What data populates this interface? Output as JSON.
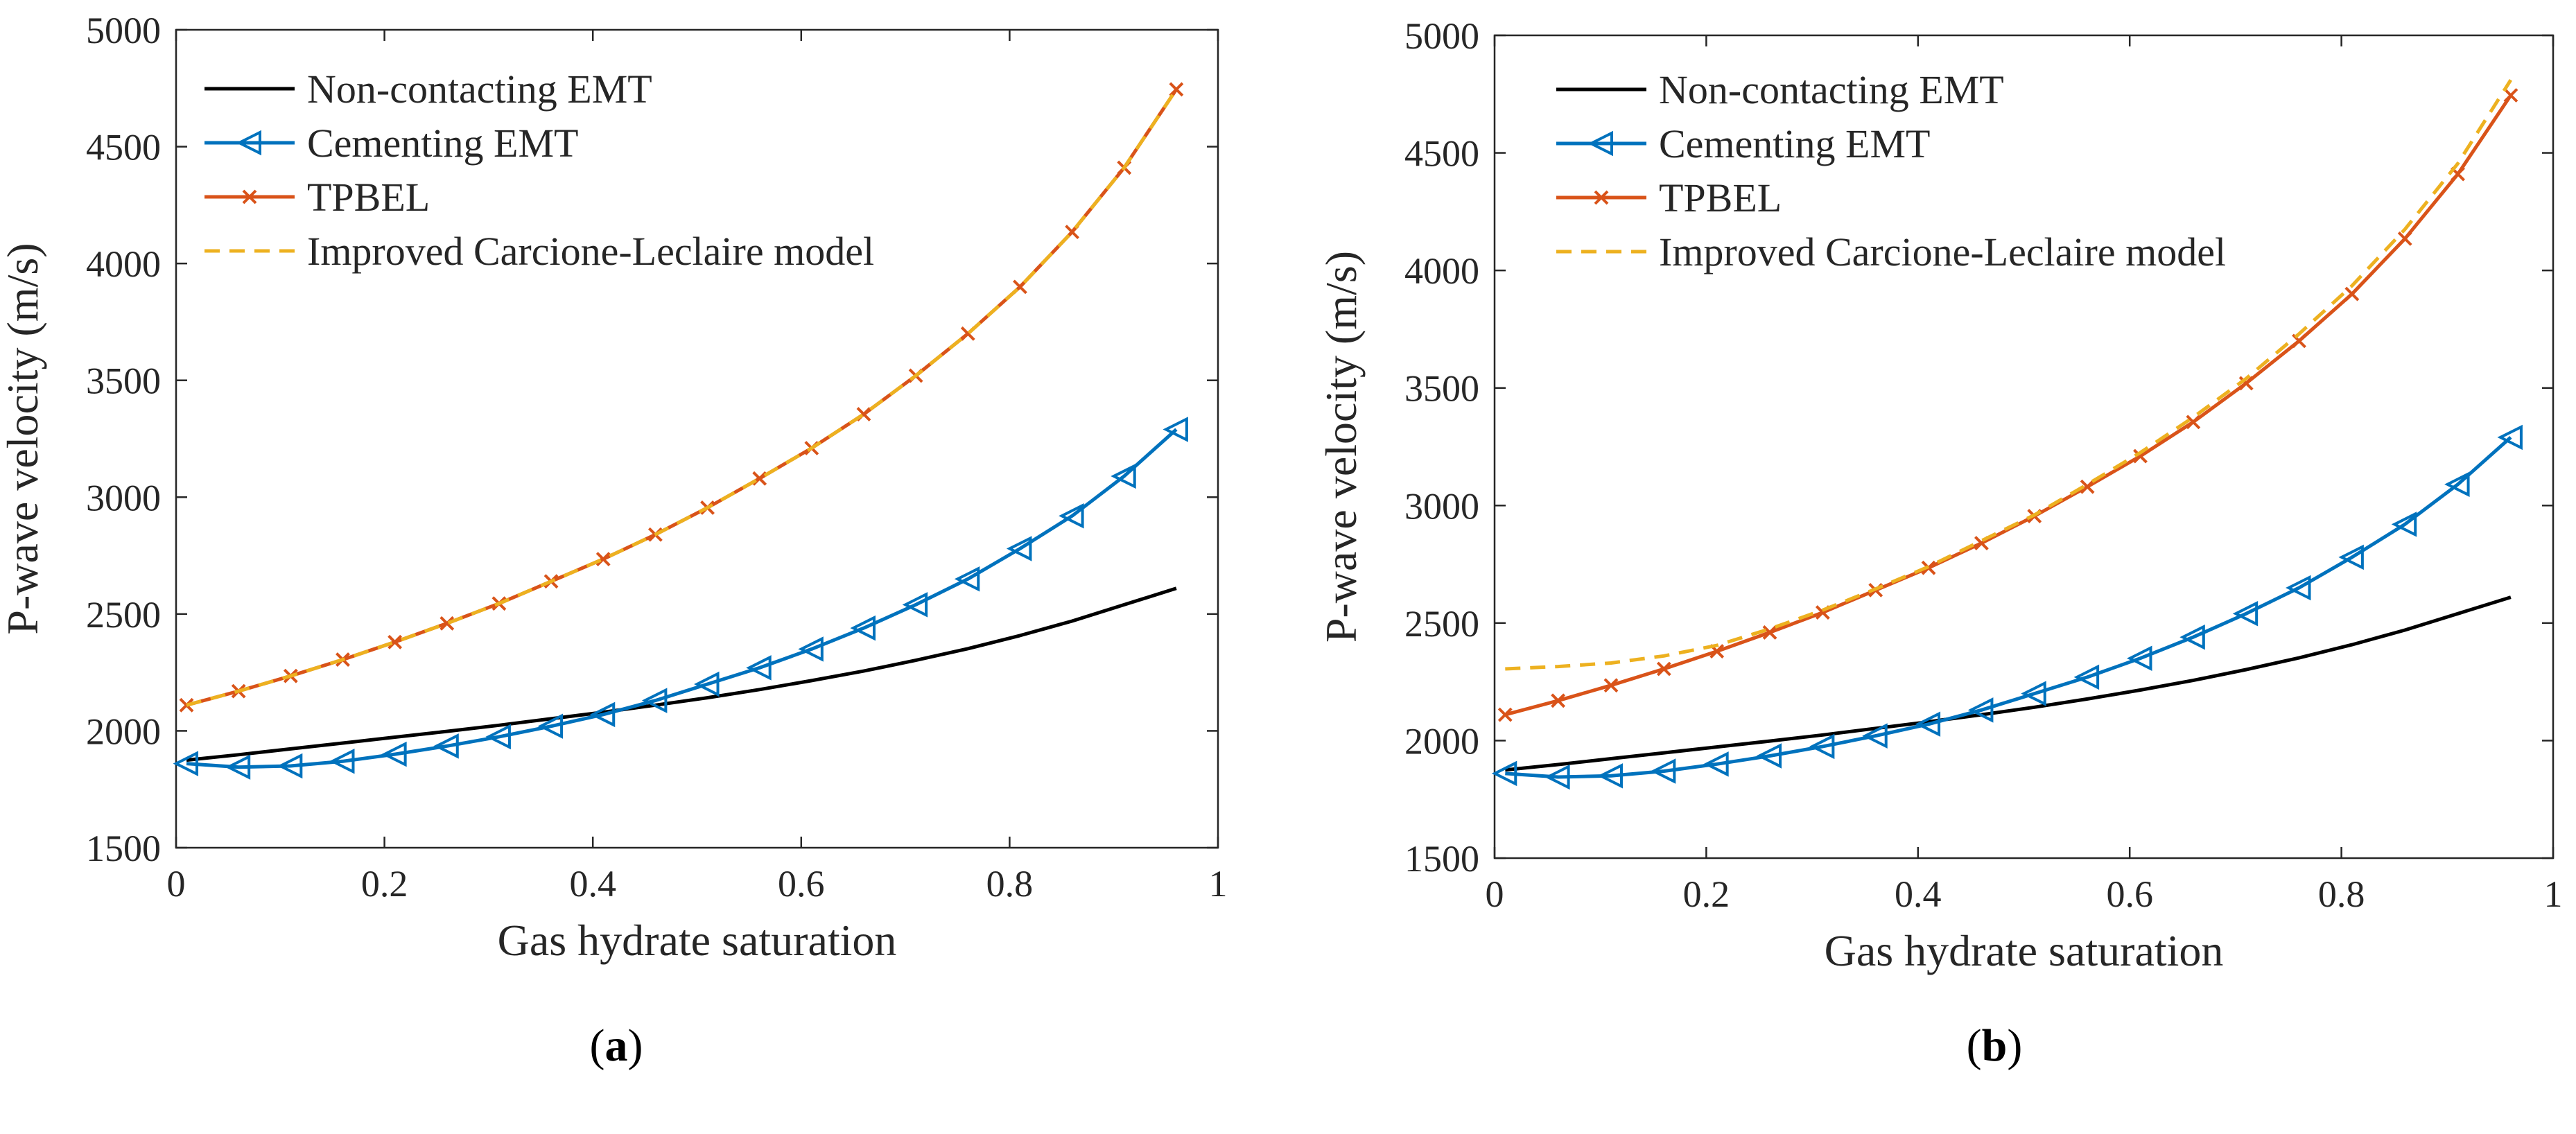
{
  "figure": {
    "colors": {
      "non_contacting": "#000000",
      "cementing": "#0072BD",
      "tpbel": "#D95319",
      "improved": "#EDB120",
      "axis": "#262626"
    }
  },
  "chart_data": [
    {
      "type": "line",
      "panel": "(a)",
      "panel_letter": "a",
      "xlabel": "Gas hydrate saturation",
      "ylabel": "P-wave velocity (m/s)",
      "xlim": [
        0,
        1
      ],
      "ylim": [
        1500,
        5000
      ],
      "xticks": [
        0,
        0.2,
        0.4,
        0.6,
        0.8,
        1
      ],
      "xtick_labels": [
        "0",
        "0.2",
        "0.4",
        "0.6",
        "0.8",
        "1"
      ],
      "yticks": [
        1500,
        2000,
        2500,
        3000,
        3500,
        4000,
        4500,
        5000
      ],
      "ytick_labels": [
        "1500",
        "2000",
        "2500",
        "3000",
        "3500",
        "4000",
        "4500",
        "5000"
      ],
      "legend_position": "top-left",
      "series": [
        {
          "name": "Non-contacting EMT",
          "color": "#000000",
          "style": "solid",
          "marker": "none",
          "x": [
            0.01,
            0.06,
            0.11,
            0.16,
            0.21,
            0.26,
            0.31,
            0.36,
            0.41,
            0.46,
            0.51,
            0.56,
            0.61,
            0.66,
            0.71,
            0.76,
            0.81,
            0.86,
            0.91,
            0.96
          ],
          "values": [
            1875,
            1898,
            1923,
            1948,
            1973,
            1998,
            2024,
            2052,
            2080,
            2110,
            2142,
            2177,
            2215,
            2256,
            2302,
            2352,
            2408,
            2470,
            2540,
            2610
          ]
        },
        {
          "name": "Cementing EMT",
          "color": "#0072BD",
          "style": "solid",
          "marker": "triangle-left",
          "x": [
            0.01,
            0.06,
            0.11,
            0.16,
            0.21,
            0.26,
            0.31,
            0.36,
            0.41,
            0.46,
            0.51,
            0.56,
            0.61,
            0.66,
            0.71,
            0.76,
            0.81,
            0.86,
            0.91,
            0.96
          ],
          "values": [
            1860,
            1845,
            1850,
            1870,
            1900,
            1935,
            1975,
            2020,
            2070,
            2130,
            2200,
            2270,
            2350,
            2440,
            2540,
            2650,
            2780,
            2920,
            3090,
            3290
          ]
        },
        {
          "name": "TPBEL",
          "color": "#D95319",
          "style": "solid",
          "marker": "x",
          "x": [
            0.01,
            0.06,
            0.11,
            0.16,
            0.21,
            0.26,
            0.31,
            0.36,
            0.41,
            0.46,
            0.51,
            0.56,
            0.61,
            0.66,
            0.71,
            0.76,
            0.81,
            0.86,
            0.91,
            0.96
          ],
          "values": [
            2110,
            2170,
            2235,
            2305,
            2380,
            2460,
            2545,
            2640,
            2735,
            2840,
            2955,
            3080,
            3210,
            3355,
            3520,
            3700,
            3900,
            4135,
            4410,
            4745
          ]
        },
        {
          "name": "Improved Carcione-Leclaire model",
          "color": "#EDB120",
          "style": "dashed",
          "marker": "none",
          "x": [
            0.01,
            0.06,
            0.11,
            0.16,
            0.21,
            0.26,
            0.31,
            0.36,
            0.41,
            0.46,
            0.51,
            0.56,
            0.61,
            0.66,
            0.71,
            0.76,
            0.81,
            0.86,
            0.91,
            0.96
          ],
          "values": [
            2110,
            2170,
            2235,
            2305,
            2380,
            2460,
            2545,
            2640,
            2735,
            2840,
            2955,
            3080,
            3210,
            3355,
            3520,
            3700,
            3900,
            4135,
            4410,
            4745
          ]
        }
      ]
    },
    {
      "type": "line",
      "panel": "(b)",
      "panel_letter": "b",
      "xlabel": "Gas hydrate saturation",
      "ylabel": "P-wave velocity (m/s)",
      "xlim": [
        0,
        1
      ],
      "ylim": [
        1500,
        5000
      ],
      "xticks": [
        0,
        0.2,
        0.4,
        0.6,
        0.8,
        1
      ],
      "xtick_labels": [
        "0",
        "0.2",
        "0.4",
        "0.6",
        "0.8",
        "1"
      ],
      "yticks": [
        1500,
        2000,
        2500,
        3000,
        3500,
        4000,
        4500,
        5000
      ],
      "ytick_labels": [
        "1500",
        "2000",
        "2500",
        "3000",
        "3500",
        "4000",
        "4500",
        "5000"
      ],
      "legend_position": "top-left",
      "series": [
        {
          "name": "Non-contacting EMT",
          "color": "#000000",
          "style": "solid",
          "marker": "none",
          "x": [
            0.01,
            0.06,
            0.11,
            0.16,
            0.21,
            0.26,
            0.31,
            0.36,
            0.41,
            0.46,
            0.51,
            0.56,
            0.61,
            0.66,
            0.71,
            0.76,
            0.81,
            0.86,
            0.91,
            0.96
          ],
          "values": [
            1875,
            1898,
            1923,
            1948,
            1973,
            1998,
            2024,
            2052,
            2080,
            2110,
            2142,
            2177,
            2215,
            2256,
            2302,
            2352,
            2408,
            2470,
            2540,
            2610
          ]
        },
        {
          "name": "Cementing EMT",
          "color": "#0072BD",
          "style": "solid",
          "marker": "triangle-left",
          "x": [
            0.01,
            0.06,
            0.11,
            0.16,
            0.21,
            0.26,
            0.31,
            0.36,
            0.41,
            0.46,
            0.51,
            0.56,
            0.61,
            0.66,
            0.71,
            0.76,
            0.81,
            0.86,
            0.91,
            0.96
          ],
          "values": [
            1860,
            1845,
            1850,
            1870,
            1900,
            1935,
            1975,
            2020,
            2070,
            2130,
            2200,
            2270,
            2350,
            2440,
            2540,
            2650,
            2780,
            2920,
            3090,
            3290
          ]
        },
        {
          "name": "TPBEL",
          "color": "#D95319",
          "style": "solid",
          "marker": "x",
          "x": [
            0.01,
            0.06,
            0.11,
            0.16,
            0.21,
            0.26,
            0.31,
            0.36,
            0.41,
            0.46,
            0.51,
            0.56,
            0.61,
            0.66,
            0.71,
            0.76,
            0.81,
            0.86,
            0.91,
            0.96
          ],
          "values": [
            2110,
            2170,
            2235,
            2305,
            2380,
            2460,
            2545,
            2640,
            2735,
            2840,
            2955,
            3080,
            3210,
            3355,
            3520,
            3700,
            3900,
            4135,
            4410,
            4745
          ]
        },
        {
          "name": "Improved Carcione-Leclaire model",
          "color": "#EDB120",
          "style": "dashed",
          "marker": "none",
          "x": [
            0.01,
            0.06,
            0.11,
            0.16,
            0.21,
            0.26,
            0.31,
            0.36,
            0.41,
            0.46,
            0.51,
            0.56,
            0.61,
            0.66,
            0.71,
            0.76,
            0.81,
            0.86,
            0.91,
            0.96
          ],
          "values": [
            2305,
            2315,
            2330,
            2360,
            2405,
            2475,
            2555,
            2645,
            2740,
            2850,
            2960,
            3090,
            3225,
            3375,
            3540,
            3730,
            3935,
            4175,
            4455,
            4810
          ]
        }
      ]
    }
  ]
}
